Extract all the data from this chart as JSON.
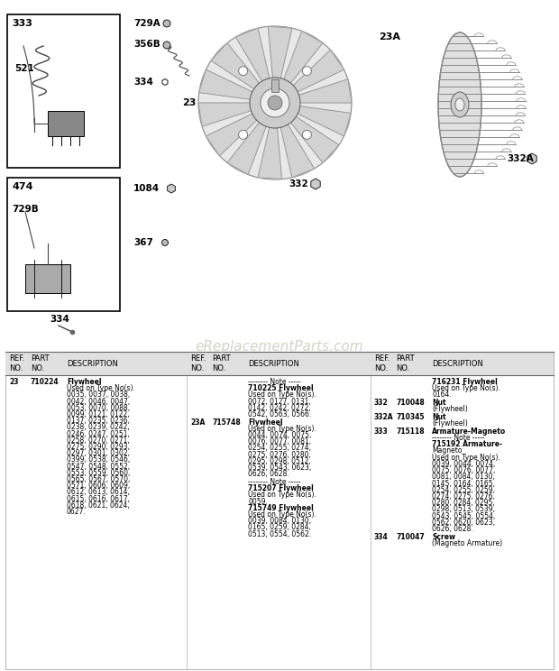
{
  "bg_color": "#ffffff",
  "watermark": "eReplacementParts.com",
  "watermark_color": "#ccccbb",
  "table_col1": [
    [
      "23",
      "710224",
      "Flywheel",
      "Used on Type No(s).",
      "0035, 0037, 0038,",
      "0042, 0046, 0047,",
      "0053, 0070, 0088,",
      "0099, 0121, 0122,",
      "0137, 0235, 0236,",
      "0238, 0239, 0242,",
      "0246, 0247, 0251,",
      "0258, 0270, 0271,",
      "0275, 0290, 0293,",
      "0297, 0301, 0302,",
      "0399, 0538, 0546,",
      "0547, 0548, 0552,",
      "0553, 0559, 0560,",
      "0565, 0567, 0570,",
      "0571, 0606, 0609,",
      "0612, 0613, 0614,",
      "0615, 0616, 0617,",
      "0618, 0621, 0624,",
      "0627."
    ]
  ],
  "table_col2": [
    [
      "",
      "",
      "-------- Note -----",
      "710225 Flywheel",
      "Used on Type No(s).",
      "0072, 0127, 0131,",
      "0142, 0242, 0272,",
      "0542, 0563, 0566."
    ],
    [
      "23A",
      "715748",
      "Flywheel",
      "Used on Type No(s).",
      "0044, 0074, 0075,",
      "0076, 0077, 0081,",
      "0254, 0255, 0274,",
      "0275, 0276, 0280,",
      "0295, 0298, 0512,",
      "0539, 0543, 0623,",
      "0626, 0628."
    ],
    [
      "",
      "",
      "-------- Note -----",
      "715207 Flywheel",
      "Used on Type No(s).",
      "0059.",
      "715749 Flywheel",
      "Used on Type No(s).",
      "0039, 0084, 0130,",
      "0165, 0259, 0284,",
      "0513, 0554, 0562."
    ]
  ],
  "table_col3": [
    [
      "",
      "",
      "716231 Flywheel",
      "Used on Type No(s).",
      "0164."
    ],
    [
      "332",
      "710048",
      "Nut",
      "(Flywheel)"
    ],
    [
      "332A",
      "710345",
      "Nut",
      "(Flywheel)"
    ],
    [
      "333",
      "715118",
      "Armature-Magneto",
      "-------- Note -----",
      "715192 Armature-",
      "Magneto",
      "Used on Type No(s).",
      "0039, 0044, 0074,",
      "0075, 0076, 0077,",
      "0081, 0084, 0130,",
      "0145, 0164, 0165,",
      "0254, 0255, 0259,",
      "0274, 0275, 0276,",
      "0280, 0284, 0295,",
      "0298, 0513, 0539,",
      "0543, 0545, 0554,",
      "0562, 0620, 0623,",
      "0626, 0628."
    ],
    [
      "334",
      "710047",
      "Screw",
      "(Magneto Armature)"
    ]
  ],
  "diagram_labels": {
    "box333": "333",
    "box474": "474",
    "label_521": "521",
    "label_729A": "729A",
    "label_356B": "356B",
    "label_334_top": "334",
    "label_1084": "1084",
    "label_729B": "729B",
    "label_367": "367",
    "label_334_bot": "334",
    "label_23": "23",
    "label_332": "332",
    "label_23A": "23A",
    "label_332A": "332A"
  }
}
